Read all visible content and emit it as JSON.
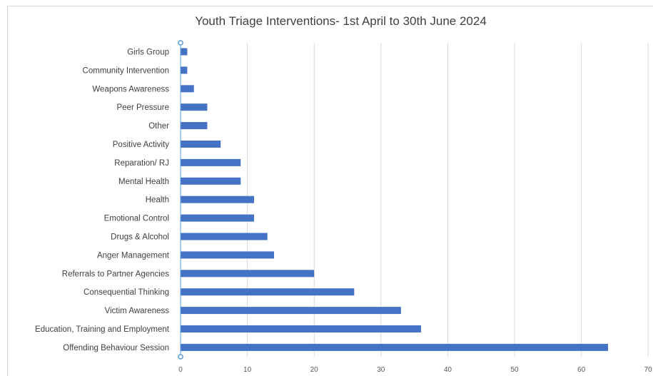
{
  "chart_data": {
    "type": "bar",
    "orientation": "horizontal",
    "title": "Youth Triage Interventions- 1st April to 30th June 2024",
    "xlabel": "",
    "ylabel": "",
    "xlim": [
      0,
      70
    ],
    "x_ticks": [
      0,
      10,
      20,
      30,
      40,
      50,
      60,
      70
    ],
    "grid": true,
    "categories": [
      "Girls Group",
      "Community Intervention",
      "Weapons Awareness",
      "Peer Pressure",
      "Other",
      "Positive Activity",
      "Reparation/ RJ",
      "Mental Health",
      "Health",
      "Emotional Control",
      "Drugs & Alcohol",
      "Anger Management",
      "Referrals to Partner Agencies",
      "Consequential Thinking",
      "Victim Awareness",
      "Education, Training and Employment",
      "Offending Behaviour Session"
    ],
    "values": [
      1,
      1,
      2,
      4,
      4,
      6,
      9,
      9,
      11,
      11,
      13,
      14,
      20,
      26,
      33,
      36,
      64
    ],
    "bar_color": "#4472c4",
    "grid_color": "#d9d9d9",
    "axis_color": "#5b9bd5"
  }
}
